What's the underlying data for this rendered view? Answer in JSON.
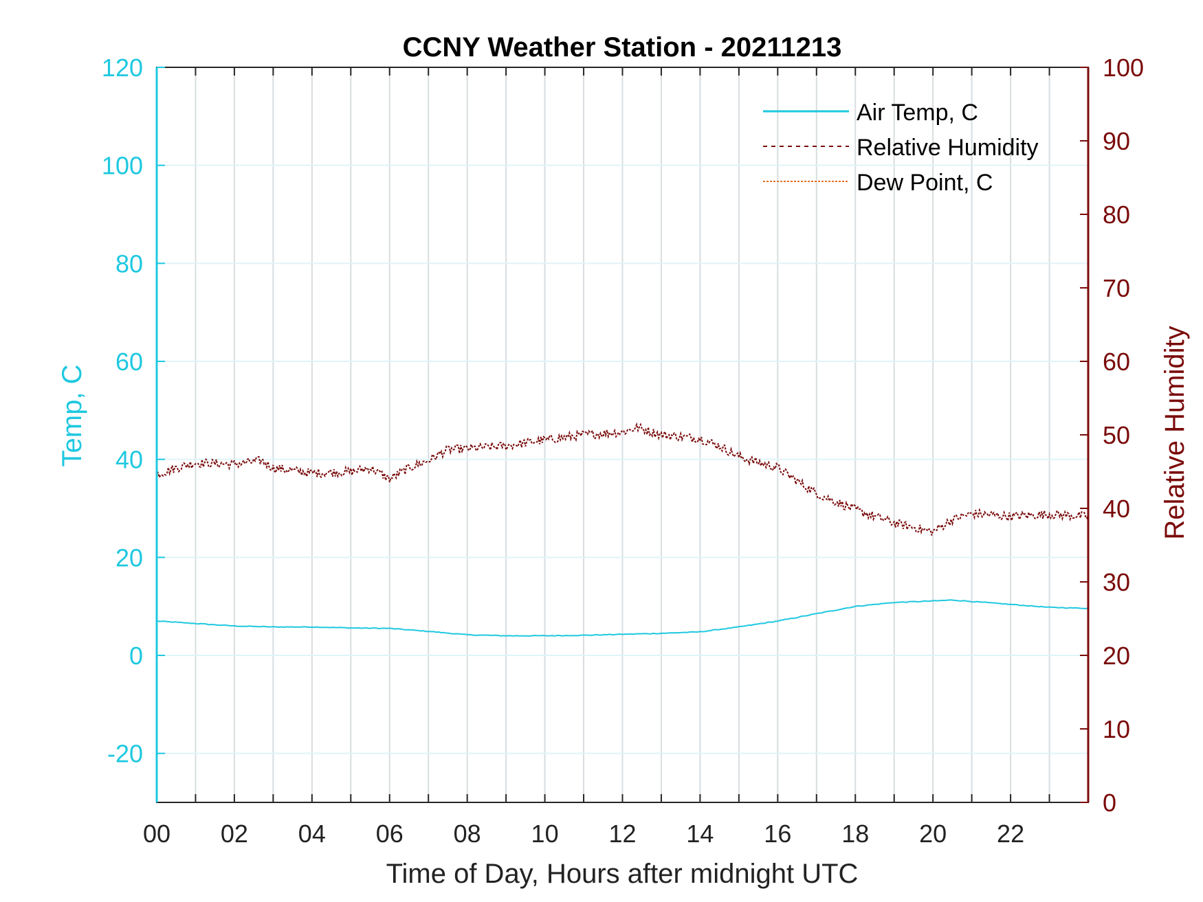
{
  "chart_data": {
    "type": "line",
    "title": "CCNY Weather Station - 20211213",
    "xlabel": "Time of Day, Hours after midnight UTC",
    "ylabel_left": "Temp, C",
    "ylabel_right": "Relative Humidity",
    "xlim": [
      0,
      24
    ],
    "ylim_left": [
      -30,
      120
    ],
    "ylim_right": [
      0,
      100
    ],
    "x_ticks": [
      "00",
      "02",
      "04",
      "06",
      "08",
      "10",
      "12",
      "14",
      "16",
      "18",
      "20",
      "22"
    ],
    "y_ticks_left": [
      "120",
      "100",
      "80",
      "60",
      "40",
      "20",
      "0",
      "-20"
    ],
    "y_ticks_right": [
      "100",
      "90",
      "80",
      "70",
      "60",
      "50",
      "40",
      "30",
      "20",
      "10",
      "0"
    ],
    "grid": true,
    "legend_position": "top-right",
    "colors": {
      "air_temp": "#1ec8e0",
      "relative_humidity": "#7a0a0a",
      "dew_point": "#e07020",
      "grid": "#d8dde0"
    },
    "series": [
      {
        "name": "Air Temp, C",
        "axis": "left",
        "style": "solid",
        "x": [
          0,
          1,
          2,
          3,
          4,
          5,
          6,
          7,
          8,
          9,
          10,
          11,
          12,
          13,
          14,
          15,
          16,
          17,
          18,
          19,
          20,
          20.5,
          21,
          22,
          23,
          24
        ],
        "y": [
          7,
          6.5,
          6,
          5.8,
          5.8,
          5.6,
          5.5,
          4.9,
          4.2,
          4,
          4,
          4.1,
          4.3,
          4.5,
          4.8,
          5.8,
          7,
          8.5,
          10,
          10.8,
          11.1,
          11.3,
          11,
          10.4,
          9.8,
          9.6
        ]
      },
      {
        "name": "Relative Humidity",
        "axis": "right",
        "style": "dashed",
        "x": [
          0,
          0.5,
          1,
          2,
          2.7,
          3,
          4,
          5,
          5.5,
          6,
          6.5,
          7,
          7.5,
          8,
          9,
          10,
          11,
          12,
          12.4,
          13,
          14,
          14.5,
          15,
          16,
          17,
          18,
          19,
          20,
          20.5,
          21,
          22,
          23,
          24
        ],
        "y": [
          44.6,
          45.5,
          46.2,
          46,
          46.5,
          45.5,
          44.8,
          45,
          45.5,
          44,
          45.5,
          46.5,
          48,
          48.1,
          48.5,
          49.3,
          50,
          50.4,
          51,
          50,
          49.5,
          48.5,
          47,
          45.5,
          42,
          39.8,
          38,
          36.8,
          38.5,
          39.3,
          38.9,
          39.2,
          38.9
        ]
      },
      {
        "name": "Dew Point, C",
        "axis": "left",
        "style": "dash-dot",
        "x": [],
        "y": []
      }
    ]
  }
}
